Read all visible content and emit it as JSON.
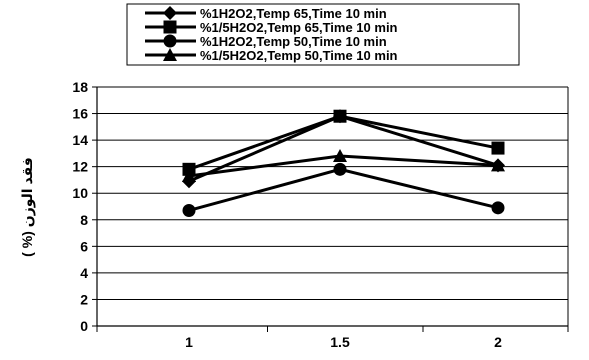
{
  "chart_data": {
    "type": "line",
    "title": "",
    "xlabel": "",
    "ylabel": "( %) فقد الوزن",
    "x": [
      1,
      1.5,
      2
    ],
    "x_tick_labels": [
      "1",
      "1.5",
      "2"
    ],
    "ylim": [
      0,
      18
    ],
    "y_ticks": [
      0,
      2,
      4,
      6,
      8,
      10,
      12,
      14,
      16,
      18
    ],
    "grid": "horizontal",
    "legend_position": "top",
    "series": [
      {
        "name": "%1H2O2,Temp 65,Time 10 min",
        "marker": "diamond",
        "values": [
          10.9,
          15.8,
          12.1
        ]
      },
      {
        "name": "%1/5H2O2,Temp 65,Time 10 min",
        "marker": "square",
        "values": [
          11.8,
          15.8,
          13.4
        ]
      },
      {
        "name": "%1H2O2,Temp 50,Time 10 min",
        "marker": "circle",
        "values": [
          8.7,
          11.8,
          8.9
        ]
      },
      {
        "name": "%1/5H2O2,Temp 50,Time 10 min",
        "marker": "triangle",
        "values": [
          11.3,
          12.8,
          12.1
        ]
      }
    ],
    "line_color": "#000000"
  }
}
